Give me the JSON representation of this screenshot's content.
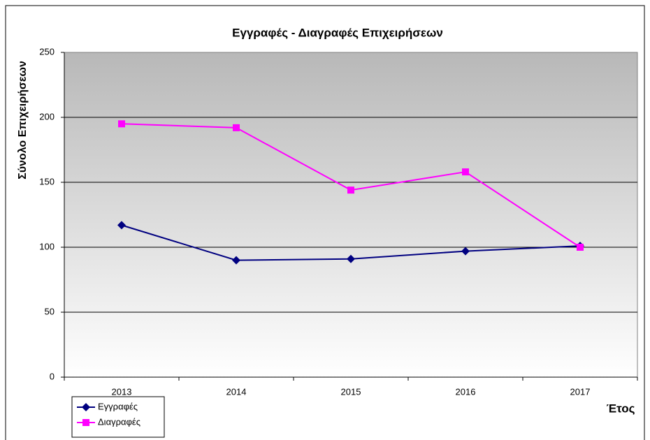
{
  "chart_data": {
    "type": "line",
    "title": "Εγγραφές - Διαγραφές Επιχειρήσεων",
    "y_label": "Σύνολο Επιχειρήσεων",
    "x_label": "Έτος",
    "categories": [
      "2013",
      "2014",
      "2015",
      "2016",
      "2017"
    ],
    "series": [
      {
        "name": "Εγγραφές",
        "color": "#000080",
        "marker": "diamond",
        "values": [
          117,
          90,
          91,
          97,
          101
        ]
      },
      {
        "name": "Διαγραφές",
        "color": "#ff00ff",
        "marker": "square",
        "values": [
          195,
          192,
          144,
          158,
          100
        ]
      }
    ],
    "ylim": [
      0,
      250
    ],
    "yticks": [
      0,
      50,
      100,
      150,
      200,
      250
    ],
    "grid": true,
    "legend": "bottom-left"
  }
}
